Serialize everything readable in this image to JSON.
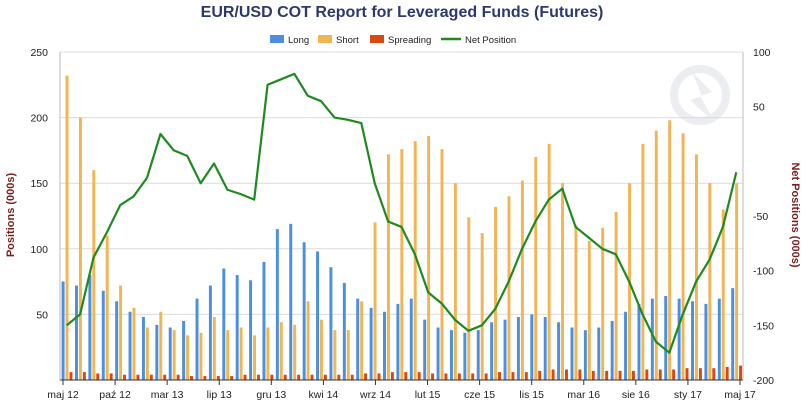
{
  "chart_data": {
    "type": "bar",
    "title": "EUR/USD COT Report for Leveraged Funds (Futures)",
    "ylabel": "Positions (000s)",
    "y2label": "Net Positions (000s)",
    "ylim": [
      0,
      250
    ],
    "y2lim": [
      -200,
      100
    ],
    "yticks": [
      "50",
      "100",
      "150",
      "200",
      "250"
    ],
    "y2ticks": [
      "100",
      "50",
      "-50",
      "-100",
      "-150",
      "-200"
    ],
    "xticks": [
      "maj 12",
      "paź 12",
      "mar 13",
      "lip 13",
      "gru 13",
      "kwi 14",
      "wrz 14",
      "lut 15",
      "cze 15",
      "lis 15",
      "mar 16",
      "sie 16",
      "sty 17",
      "maj 17"
    ],
    "legend": [
      "Long",
      "Short",
      "Spreading",
      "Net Position"
    ],
    "colors": {
      "long": "#4a8fe0",
      "short": "#f2b554",
      "spreading": "#d64a12",
      "net": "#1f8a1f"
    },
    "series": [
      {
        "name": "Long",
        "values": [
          75,
          72,
          80,
          68,
          60,
          52,
          48,
          42,
          40,
          45,
          62,
          72,
          85,
          80,
          76,
          90,
          115,
          119,
          105,
          98,
          86,
          74,
          62,
          55,
          52,
          58,
          62,
          46,
          40,
          38,
          36,
          38,
          44,
          46,
          48,
          50,
          48,
          44,
          40,
          38,
          40,
          45,
          52,
          58,
          62,
          64,
          62,
          60,
          58,
          62,
          70
        ]
      },
      {
        "name": "Short",
        "values": [
          232,
          200,
          160,
          110,
          72,
          55,
          40,
          52,
          38,
          34,
          36,
          48,
          38,
          40,
          34,
          40,
          44,
          42,
          60,
          46,
          38,
          38,
          60,
          120,
          172,
          176,
          182,
          186,
          176,
          150,
          124,
          112,
          132,
          140,
          152,
          170,
          180,
          150,
          118,
          106,
          116,
          128,
          150,
          180,
          190,
          198,
          188,
          172,
          150,
          130,
          150
        ]
      },
      {
        "name": "Spreading",
        "values": [
          6,
          6,
          5,
          5,
          4,
          4,
          4,
          4,
          4,
          3,
          3,
          3,
          3,
          4,
          4,
          4,
          4,
          4,
          4,
          4,
          4,
          4,
          5,
          5,
          6,
          6,
          6,
          5,
          5,
          5,
          5,
          5,
          6,
          6,
          6,
          7,
          8,
          8,
          8,
          7,
          7,
          7,
          7,
          8,
          8,
          8,
          9,
          9,
          9,
          10,
          11
        ]
      },
      {
        "name": "Net Position",
        "values": [
          -150,
          -140,
          -88,
          -65,
          -40,
          -32,
          -15,
          25,
          10,
          5,
          -20,
          -2,
          -26,
          -30,
          -35,
          70,
          75,
          80,
          60,
          55,
          40,
          38,
          35,
          -20,
          -55,
          -60,
          -85,
          -120,
          -130,
          -145,
          -155,
          -150,
          -135,
          -110,
          -80,
          -55,
          -35,
          -25,
          -60,
          -70,
          -80,
          -85,
          -110,
          -140,
          -165,
          -175,
          -140,
          -110,
          -90,
          -60,
          -10
        ]
      }
    ]
  }
}
